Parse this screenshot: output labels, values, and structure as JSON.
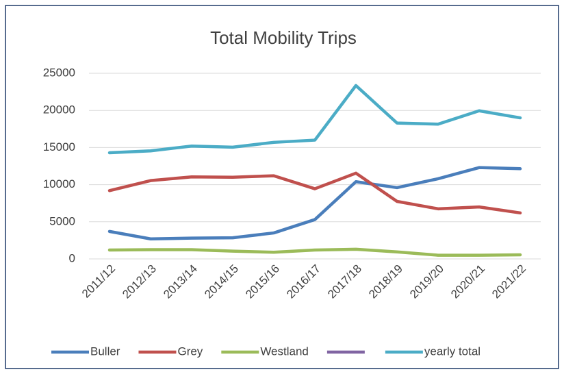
{
  "chart_data": {
    "type": "line",
    "title": "Total Mobility Trips",
    "categories": [
      "2011/12",
      "2012/13",
      "2013/14",
      "2014/15",
      "2015/16",
      "2016/17",
      "2017/18",
      "2018/19",
      "2019/20",
      "2020/21",
      "2021/22"
    ],
    "series": [
      {
        "name": "Buller",
        "color": "#4a7ebb",
        "values": [
          3700,
          2700,
          2800,
          2850,
          3500,
          5300,
          10400,
          9600,
          10800,
          12300,
          12150
        ]
      },
      {
        "name": "Grey",
        "color": "#c0504d",
        "values": [
          9200,
          10550,
          11050,
          11000,
          11200,
          9450,
          11550,
          7750,
          6750,
          7000,
          6200
        ]
      },
      {
        "name": "Westland",
        "color": "#9bbb59",
        "values": [
          1200,
          1250,
          1250,
          1050,
          900,
          1200,
          1300,
          950,
          500,
          500,
          550
        ]
      },
      {
        "color": "#8064a2",
        "values": [
          null,
          null,
          null,
          null,
          null,
          null,
          null,
          null,
          null,
          null,
          null
        ]
      },
      {
        "name": "yearly total",
        "color": "#4bacc6",
        "values": [
          14300,
          14550,
          15200,
          15050,
          15700,
          16000,
          23350,
          18300,
          18150,
          19950,
          19000
        ]
      }
    ],
    "ylim": [
      0,
      25000
    ],
    "yticks": [
      0,
      5000,
      10000,
      15000,
      20000,
      25000
    ],
    "grid": true,
    "legend": "bottom"
  }
}
